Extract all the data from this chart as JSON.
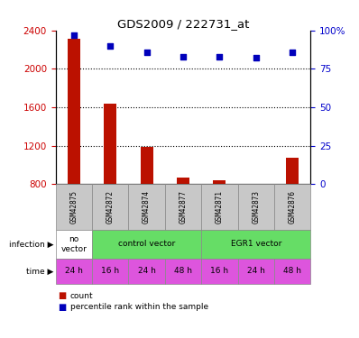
{
  "title": "GDS2009 / 222731_at",
  "samples": [
    "GSM42875",
    "GSM42872",
    "GSM42874",
    "GSM42877",
    "GSM42871",
    "GSM42873",
    "GSM42876"
  ],
  "counts": [
    2310,
    1640,
    1190,
    870,
    840,
    805,
    1080
  ],
  "percentiles": [
    97,
    90,
    86,
    83,
    83,
    82,
    86
  ],
  "ylim_left": [
    800,
    2400
  ],
  "ylim_right": [
    0,
    100
  ],
  "yticks_left": [
    800,
    1200,
    1600,
    2000,
    2400
  ],
  "yticks_right": [
    0,
    25,
    50,
    75,
    100
  ],
  "time_labels": [
    "24 h",
    "16 h",
    "24 h",
    "48 h",
    "16 h",
    "24 h",
    "48 h"
  ],
  "bar_color": "#bb1100",
  "dot_color": "#0000bb",
  "label_color_left": "#cc0000",
  "label_color_right": "#0000cc",
  "sample_box_color": "#c8c8c8",
  "no_vector_color": "#ffffff",
  "control_vector_color": "#66dd66",
  "egr1_vector_color": "#66dd66",
  "time_row_color": "#dd55dd",
  "infection_data": [
    {
      "label": "no\nvector",
      "start": 0,
      "end": 1,
      "color": "#ffffff"
    },
    {
      "label": "control vector",
      "start": 1,
      "end": 4,
      "color": "#66dd66"
    },
    {
      "label": "EGR1 vector",
      "start": 4,
      "end": 7,
      "color": "#66dd66"
    }
  ]
}
